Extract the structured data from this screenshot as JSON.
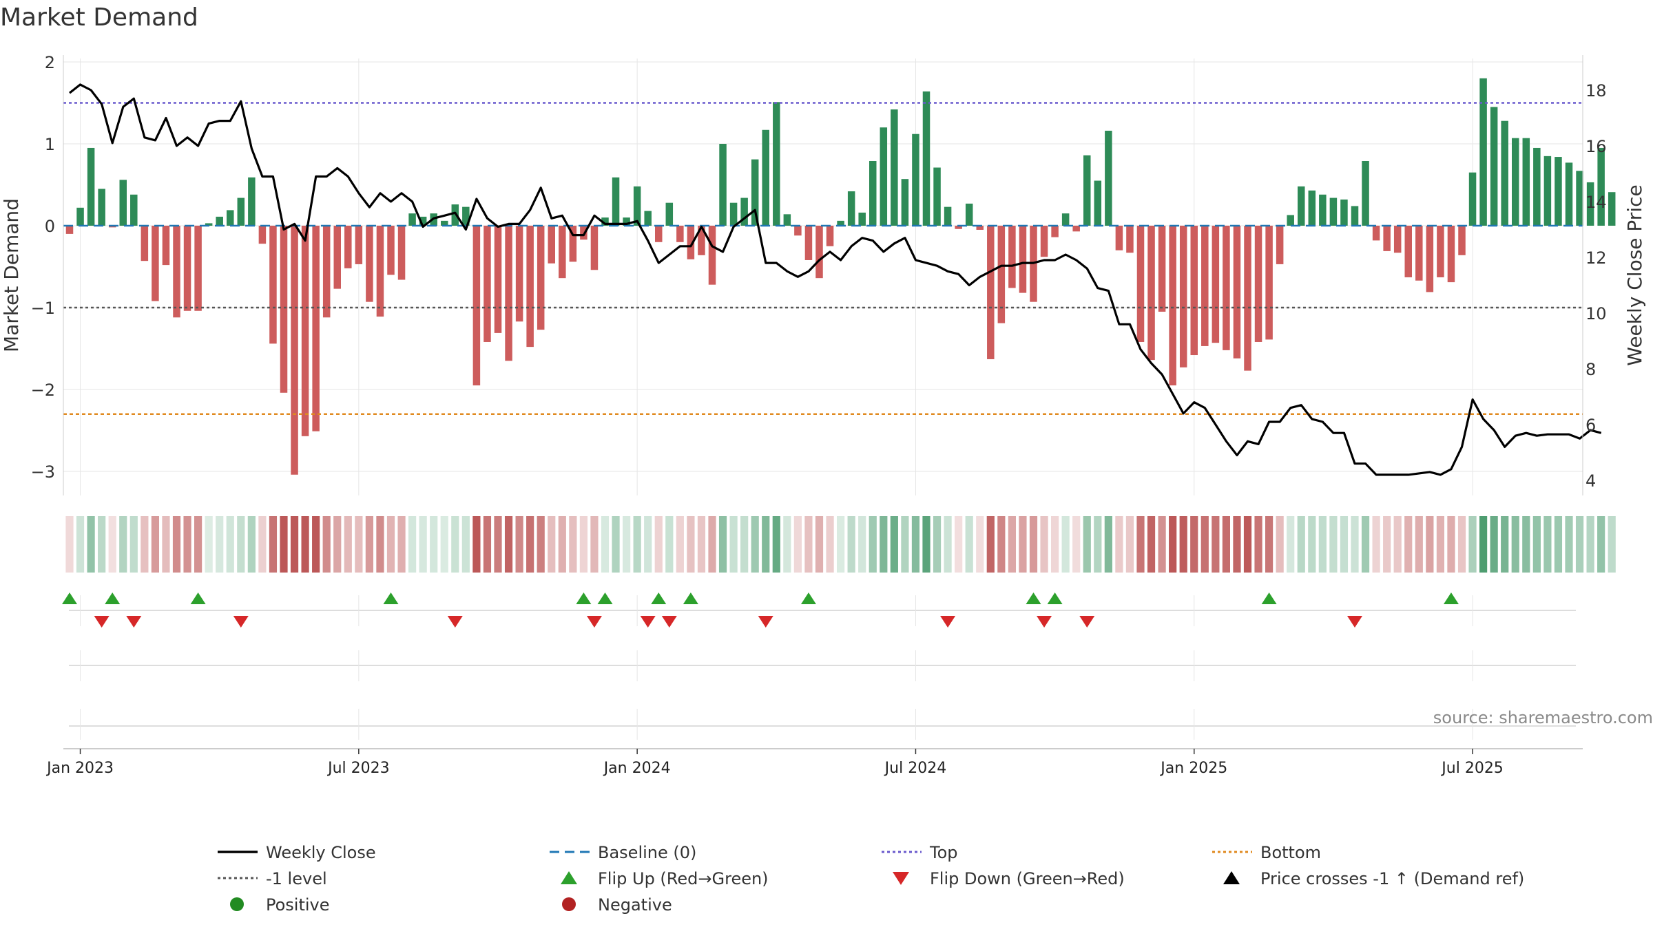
{
  "chart_data": {
    "type": "bar",
    "title": "Market Demand",
    "source": "source: sharemaestro.com",
    "ylabel_left": "Market Demand",
    "ylabel_right": "Weekly Close Price",
    "ylim_left": [
      -3.3,
      2.05
    ],
    "ylim_right": [
      3.5,
      18.8
    ],
    "yticks_left": [
      2,
      1,
      0,
      -1,
      -2,
      -3
    ],
    "yticks_left_labels": [
      "2",
      "1",
      "0",
      "−1",
      "−2",
      "−3"
    ],
    "yticks_right": [
      18,
      16,
      14,
      12,
      10,
      8,
      6,
      4
    ],
    "x_tick_labels": [
      "Jan 2023",
      "Jul 2023",
      "Jan 2024",
      "Jul 2024",
      "Jan 2025",
      "Jul 2025"
    ],
    "x_tick_weeks": [
      1,
      27,
      53,
      79,
      105,
      131
    ],
    "reference_lines": {
      "top": 1.5,
      "bottom": -2.3,
      "minus_one": -1.0,
      "baseline": 0.0
    },
    "colors": {
      "positive": "#2e8b57",
      "negative": "#cd5c5c",
      "price": "#000000",
      "baseline": "#1f77b4",
      "top": "#6a5acd",
      "bottom": "#e08a1f",
      "minus_one": "#555555",
      "flip_up": "#2ca02c",
      "flip_down": "#d62728",
      "legend_positive": "#228b22",
      "legend_negative": "#b22222"
    },
    "series": [
      {
        "name": "Market Demand",
        "values": [
          -0.1,
          0.22,
          0.95,
          0.45,
          -0.02,
          0.56,
          0.38,
          -0.43,
          -0.92,
          -0.48,
          -1.12,
          -1.04,
          -1.04,
          0.03,
          0.11,
          0.19,
          0.34,
          0.59,
          -0.22,
          -1.44,
          -2.04,
          -3.04,
          -2.57,
          -2.51,
          -1.12,
          -0.77,
          -0.52,
          -0.47,
          -0.93,
          -1.11,
          -0.6,
          -0.66,
          0.15,
          0.11,
          0.15,
          0.06,
          0.26,
          0.23,
          -1.95,
          -1.42,
          -1.31,
          -1.65,
          -1.17,
          -1.48,
          -1.27,
          -0.46,
          -0.64,
          -0.44,
          -0.17,
          -0.54,
          0.1,
          0.59,
          0.1,
          0.48,
          0.18,
          -0.2,
          0.28,
          -0.2,
          -0.41,
          -0.36,
          -0.72,
          1.0,
          0.28,
          0.34,
          0.81,
          1.17,
          1.51,
          0.14,
          -0.12,
          -0.42,
          -0.64,
          -0.25,
          0.06,
          0.42,
          0.16,
          0.79,
          1.2,
          1.42,
          0.57,
          1.12,
          1.64,
          0.71,
          0.23,
          -0.04,
          0.27,
          -0.05,
          -1.63,
          -1.19,
          -0.76,
          -0.82,
          -0.93,
          -0.38,
          -0.14,
          0.15,
          -0.07,
          0.86,
          0.55,
          1.16,
          -0.3,
          -0.33,
          -1.42,
          -1.64,
          -1.05,
          -1.95,
          -1.73,
          -1.58,
          -1.47,
          -1.43,
          -1.52,
          -1.62,
          -1.77,
          -1.42,
          -1.39,
          -0.47,
          0.13,
          0.48,
          0.43,
          0.38,
          0.34,
          0.32,
          0.24,
          0.79,
          -0.18,
          -0.31,
          -0.33,
          -0.63,
          -0.67,
          -0.81,
          -0.63,
          -0.69,
          -0.36,
          0.65,
          1.8,
          1.45,
          1.28,
          1.07,
          1.07,
          0.95,
          0.85,
          0.84,
          0.77,
          0.67,
          0.53,
          0.95,
          0.41
        ]
      },
      {
        "name": "Weekly Close",
        "values": [
          17.9,
          18.2,
          18.0,
          17.5,
          16.1,
          17.4,
          17.7,
          16.3,
          16.2,
          17.0,
          16.0,
          16.3,
          16.0,
          16.8,
          16.9,
          16.9,
          17.6,
          15.9,
          14.9,
          14.9,
          13.0,
          13.2,
          12.6,
          14.9,
          14.9,
          15.2,
          14.9,
          14.3,
          13.8,
          14.3,
          14.0,
          14.3,
          14.0,
          13.1,
          13.4,
          13.5,
          13.6,
          13.0,
          14.1,
          13.4,
          13.1,
          13.2,
          13.2,
          13.7,
          14.5,
          13.4,
          13.5,
          12.8,
          12.8,
          13.5,
          13.2,
          13.2,
          13.2,
          13.3,
          12.6,
          11.8,
          12.1,
          12.4,
          12.4,
          13.1,
          12.4,
          12.2,
          13.1,
          13.4,
          13.7,
          11.8,
          11.8,
          11.5,
          11.3,
          11.5,
          11.9,
          12.2,
          11.9,
          12.4,
          12.7,
          12.6,
          12.2,
          12.5,
          12.7,
          11.9,
          11.8,
          11.7,
          11.5,
          11.4,
          11.0,
          11.3,
          11.5,
          11.7,
          11.7,
          11.8,
          11.8,
          11.9,
          11.9,
          12.1,
          11.9,
          11.6,
          10.9,
          10.8,
          9.6,
          9.6,
          8.7,
          8.2,
          7.8,
          7.1,
          6.4,
          6.8,
          6.6,
          6.0,
          5.4,
          4.9,
          5.4,
          5.3,
          6.1,
          6.1,
          6.6,
          6.7,
          6.2,
          6.1,
          5.7,
          5.7,
          4.6,
          4.6,
          4.2,
          4.2,
          4.2,
          4.2,
          4.25,
          4.3,
          4.2,
          4.4,
          5.2,
          6.9,
          6.2,
          5.8,
          5.2,
          5.6,
          5.7,
          5.6,
          5.65,
          5.65,
          5.65,
          5.5,
          5.8,
          5.7
        ]
      }
    ],
    "flip_up_weeks": [
      0,
      4,
      12,
      30,
      48,
      50,
      55,
      58,
      69,
      90,
      92,
      112,
      129
    ],
    "flip_down_weeks": [
      3,
      6,
      16,
      36,
      49,
      54,
      56,
      65,
      82,
      91,
      95,
      120
    ],
    "legend": [
      {
        "label": "Weekly Close",
        "marker": "line",
        "color": "#000000"
      },
      {
        "label": "Baseline (0)",
        "marker": "dash",
        "color": "#1f77b4"
      },
      {
        "label": "Top",
        "marker": "dot",
        "color": "#6a5acd"
      },
      {
        "label": "Bottom",
        "marker": "dot",
        "color": "#e08a1f"
      },
      {
        "label": "-1 level",
        "marker": "dot",
        "color": "#555555"
      },
      {
        "label": "Flip Up (Red→Green)",
        "marker": "tri-up",
        "color": "#2ca02c"
      },
      {
        "label": "Flip Down (Green→Red)",
        "marker": "tri-down",
        "color": "#d62728"
      },
      {
        "label": "Price crosses -1 ↑ (Demand ref)",
        "marker": "tri-up",
        "color": "#000000"
      },
      {
        "label": "Positive",
        "marker": "circle",
        "color": "#228b22"
      },
      {
        "label": "Negative",
        "marker": "circle",
        "color": "#b22222"
      }
    ]
  }
}
